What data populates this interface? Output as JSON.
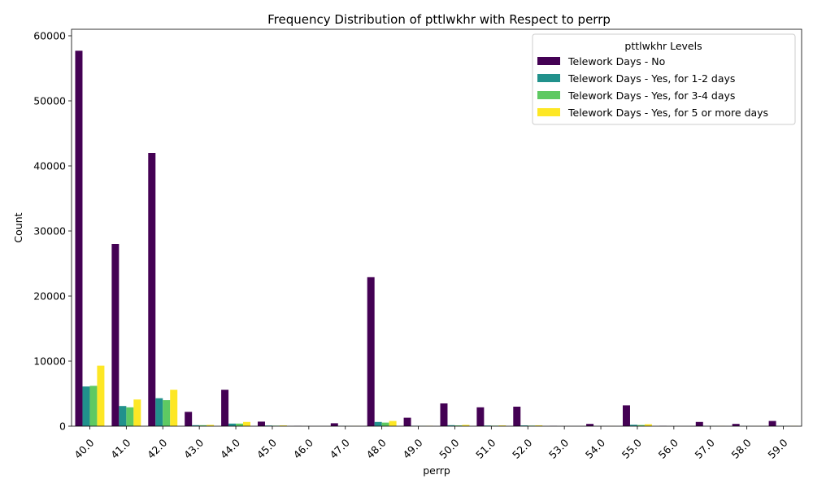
{
  "chart_data": {
    "type": "bar",
    "title": "Frequency Distribution of pttlwkhr with Respect to perrp",
    "xlabel": "perrp",
    "ylabel": "Count",
    "ylim": [
      0,
      61000
    ],
    "yticks": [
      0,
      10000,
      20000,
      30000,
      40000,
      50000,
      60000
    ],
    "grid": false,
    "legend_title": "pttlwkhr Levels",
    "legend_position": "top-right",
    "categories": [
      "40.0",
      "41.0",
      "42.0",
      "43.0",
      "44.0",
      "45.0",
      "46.0",
      "47.0",
      "48.0",
      "49.0",
      "50.0",
      "51.0",
      "52.0",
      "53.0",
      "54.0",
      "55.0",
      "56.0",
      "57.0",
      "58.0",
      "59.0"
    ],
    "series": [
      {
        "name": "Telework Days - No",
        "color": "#440154",
        "values": [
          57700,
          28000,
          42000,
          2200,
          5600,
          700,
          30,
          450,
          22900,
          1300,
          3500,
          2900,
          3000,
          30,
          350,
          3200,
          30,
          650,
          350,
          800
        ]
      },
      {
        "name": "Telework Days - Yes, for 1-2 days",
        "color": "#21918c",
        "values": [
          6100,
          3100,
          4300,
          150,
          400,
          100,
          0,
          30,
          650,
          60,
          150,
          100,
          120,
          0,
          20,
          220,
          0,
          30,
          20,
          40
        ]
      },
      {
        "name": "Telework Days - Yes, for 3-4 days",
        "color": "#5ec962",
        "values": [
          6200,
          2900,
          4000,
          150,
          400,
          80,
          0,
          20,
          550,
          40,
          120,
          80,
          90,
          0,
          15,
          180,
          0,
          20,
          15,
          30
        ]
      },
      {
        "name": "Telework Days - Yes, for 5 or more days",
        "color": "#fde725",
        "values": [
          9300,
          4100,
          5600,
          200,
          650,
          120,
          0,
          30,
          800,
          60,
          200,
          120,
          130,
          0,
          20,
          300,
          0,
          30,
          20,
          40
        ]
      }
    ]
  }
}
